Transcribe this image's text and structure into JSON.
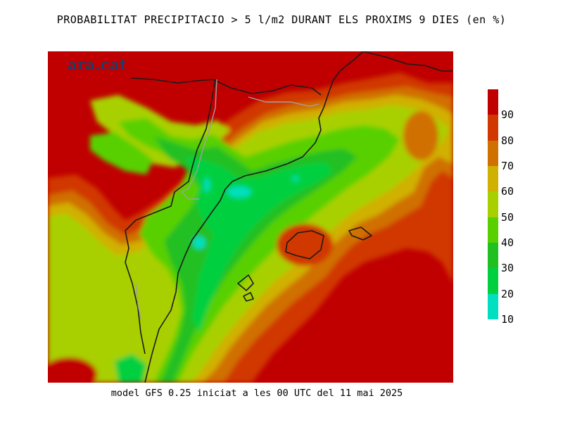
{
  "title": "PROBABILITAT PRECIPITACIO > 5 l/m2 DURANT ELS PROXIMS 9 DIES (en %)",
  "footer": "model GFS 0.25 iniciat a les 00 UTC del 11 mai 2025",
  "logo": "ara.cat",
  "legend": {
    "ticks": [
      "90",
      "80",
      "70",
      "60",
      "50",
      "40",
      "30",
      "20",
      "10"
    ],
    "colors": [
      "#c00000",
      "#d03800",
      "#d07000",
      "#d0b000",
      "#a8d000",
      "#58d000",
      "#20c020",
      "#00d040",
      "#00e0c0"
    ]
  },
  "colors": {
    "p90": "#c00000",
    "p80": "#d03800",
    "p70": "#d07000",
    "p60": "#d0b000",
    "p50": "#a8d000",
    "p40": "#58d000",
    "p30": "#20c020",
    "p20": "#00d040",
    "p10": "#00e0c0",
    "coast": "#1a1a1a",
    "border": "#a0a0a0"
  }
}
